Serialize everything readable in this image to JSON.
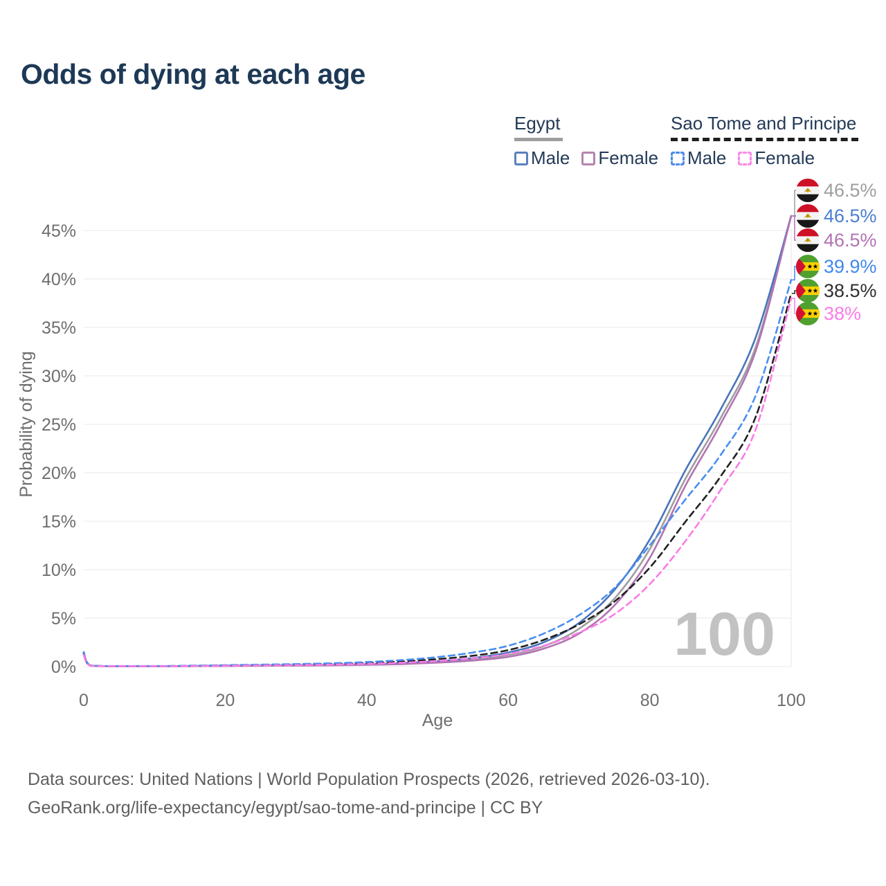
{
  "title": "Odds of dying at each age",
  "legend": {
    "groups": [
      {
        "name": "Egypt",
        "style": "solid",
        "underline_color": "#9e9e9e",
        "items": [
          {
            "label": "Male",
            "color": "#5b80bf"
          },
          {
            "label": "Female",
            "color": "#b584ae"
          }
        ]
      },
      {
        "name": "Sao Tome and Principe",
        "style": "dashed",
        "underline_color": "#1f1f1f",
        "items": [
          {
            "label": "Male",
            "color": "#4d8ce8"
          },
          {
            "label": "Female",
            "color": "#f98ae8"
          }
        ]
      }
    ]
  },
  "chart_data": {
    "type": "line",
    "title": "Odds of dying at each age",
    "xlabel": "Age",
    "ylabel": "Probability of dying",
    "xlim": [
      0,
      100
    ],
    "ylim": [
      0,
      45
    ],
    "grid": "horizontal",
    "legend_position": "top-right",
    "age_counter": "100",
    "x_ticks": [
      {
        "value": 0,
        "label": "0"
      },
      {
        "value": 20,
        "label": "20"
      },
      {
        "value": 40,
        "label": "40"
      },
      {
        "value": 60,
        "label": "60"
      },
      {
        "value": 80,
        "label": "80"
      },
      {
        "value": 100,
        "label": "100"
      }
    ],
    "y_ticks": [
      {
        "value": 0,
        "label": "0%"
      },
      {
        "value": 5,
        "label": "5%"
      },
      {
        "value": 10,
        "label": "10%"
      },
      {
        "value": 15,
        "label": "15%"
      },
      {
        "value": 20,
        "label": "20%"
      },
      {
        "value": 25,
        "label": "25%"
      },
      {
        "value": 30,
        "label": "30%"
      },
      {
        "value": 35,
        "label": "35%"
      },
      {
        "value": 40,
        "label": "40%"
      },
      {
        "value": 45,
        "label": "45%"
      }
    ],
    "x": [
      0,
      1,
      5,
      10,
      15,
      20,
      25,
      30,
      35,
      40,
      45,
      50,
      55,
      60,
      65,
      70,
      75,
      80,
      85,
      90,
      95,
      100
    ],
    "series": [
      {
        "id": "egypt",
        "name": "Egypt (both sexes)",
        "country": "Egypt",
        "dash": "solid",
        "color": "#9e9e9e",
        "label_color": "#9e9e9e",
        "flag": "egypt",
        "end_label": "46.5%",
        "values": [
          1.3,
          0.08,
          0.04,
          0.04,
          0.05,
          0.08,
          0.1,
          0.12,
          0.15,
          0.21,
          0.3,
          0.48,
          0.74,
          1.2,
          2.1,
          3.9,
          7.0,
          12.1,
          19.3,
          25.6,
          33.0,
          46.5
        ]
      },
      {
        "id": "egypt-male",
        "name": "Egypt Male",
        "country": "Egypt",
        "dash": "solid",
        "color": "#4a74bd",
        "label_color": "#4a7ed2",
        "flag": "egypt",
        "end_label": "46.5%",
        "values": [
          1.4,
          0.09,
          0.05,
          0.05,
          0.06,
          0.1,
          0.12,
          0.14,
          0.18,
          0.25,
          0.36,
          0.56,
          0.88,
          1.45,
          2.5,
          4.5,
          7.9,
          13.1,
          20.2,
          26.5,
          34.0,
          46.5
        ]
      },
      {
        "id": "egypt-female",
        "name": "Egypt Female",
        "country": "Egypt",
        "dash": "solid",
        "color": "#b273b2",
        "label_color": "#b273b2",
        "flag": "egypt",
        "end_label": "46.5%",
        "values": [
          1.2,
          0.07,
          0.03,
          0.03,
          0.04,
          0.06,
          0.08,
          0.1,
          0.13,
          0.18,
          0.26,
          0.41,
          0.62,
          1.0,
          1.85,
          3.4,
          6.3,
          11.2,
          18.6,
          25.0,
          32.6,
          46.5
        ]
      },
      {
        "id": "stp",
        "name": "Sao Tome and Principe (both sexes)",
        "country": "Sao Tome and Principe",
        "dash": "dashed",
        "color": "#222222",
        "label_color": "#2e2e2e",
        "flag": "sao-tome-and-principe",
        "end_label": "38.5%",
        "values": [
          1.35,
          0.1,
          0.05,
          0.05,
          0.07,
          0.12,
          0.16,
          0.21,
          0.27,
          0.37,
          0.52,
          0.77,
          1.12,
          1.7,
          2.75,
          4.35,
          6.7,
          10.2,
          14.9,
          19.6,
          25.8,
          38.5
        ]
      },
      {
        "id": "stp-male",
        "name": "Sao Tome and Principe Male",
        "country": "Sao Tome and Principe",
        "dash": "dashed",
        "color": "#4a8ef0",
        "label_color": "#3f88f0",
        "flag": "sao-tome-and-principe",
        "end_label": "39.9%",
        "values": [
          1.5,
          0.11,
          0.06,
          0.06,
          0.09,
          0.15,
          0.2,
          0.26,
          0.34,
          0.47,
          0.67,
          0.98,
          1.45,
          2.15,
          3.4,
          5.3,
          8.1,
          12.5,
          17.2,
          21.8,
          28.0,
          39.9
        ]
      },
      {
        "id": "stp-female",
        "name": "Sao Tome and Principe Female",
        "country": "Sao Tome and Principe",
        "dash": "dashed",
        "color": "#f97ce6",
        "label_color": "#fb7ce8",
        "flag": "sao-tome-and-principe",
        "end_label": "38%",
        "values": [
          1.2,
          0.08,
          0.04,
          0.04,
          0.05,
          0.09,
          0.12,
          0.15,
          0.2,
          0.28,
          0.4,
          0.58,
          0.86,
          1.3,
          2.15,
          3.5,
          5.4,
          8.5,
          12.9,
          18.2,
          24.5,
          38.0
        ]
      }
    ]
  },
  "flags": {
    "egypt": {
      "red": "#ce1126",
      "white": "#f4f4f4",
      "black": "#181818",
      "gold": "#c09300"
    },
    "sao-tome-and-principe": {
      "green": "#4fa02e",
      "yellow": "#ffd100",
      "red": "#d21034",
      "black": "#111111"
    }
  },
  "footer": {
    "line1": "Data sources: United Nations | World Population Prospects (2026, retrieved 2026-03-10).",
    "line2": "GeoRank.org/life-expectancy/egypt/sao-tome-and-principe | CC BY"
  }
}
